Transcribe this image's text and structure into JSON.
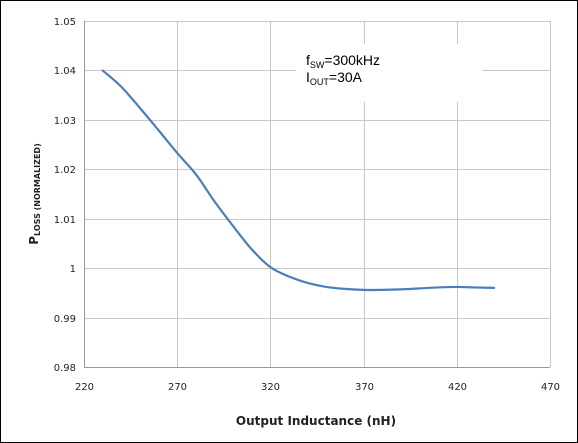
{
  "chart_data": {
    "type": "line",
    "xlabel": "Output Inductance (nH)",
    "ylabel": {
      "main": "P",
      "subscript": "LOSS (NORMALIZED)"
    },
    "xlim": [
      220,
      470
    ],
    "ylim": [
      0.98,
      1.05
    ],
    "x_ticks": [
      "220",
      "270",
      "320",
      "370",
      "420",
      "470"
    ],
    "y_ticks": [
      "0.98",
      "0.99",
      "1",
      "1.01",
      "1.02",
      "1.03",
      "1.04",
      "1.05"
    ],
    "grid": true,
    "series": [
      {
        "color": "#4a7ebb",
        "x": [
          230,
          240,
          250,
          260,
          270,
          280,
          290,
          300,
          310,
          320,
          330,
          340,
          350,
          360,
          370,
          380,
          390,
          400,
          410,
          420,
          430,
          440
        ],
        "y": [
          1.04,
          1.0367,
          1.0324,
          1.0279,
          1.0233,
          1.019,
          1.0135,
          1.0085,
          1.0038,
          1.0002,
          0.9983,
          0.997,
          0.9962,
          0.9958,
          0.9956,
          0.9956,
          0.9957,
          0.9959,
          0.9961,
          0.9962,
          0.9961,
          0.996
        ]
      }
    ],
    "annotation": {
      "line1": {
        "main": "f",
        "sub": "SW",
        "rest": "=300kHz"
      },
      "line2": {
        "main": "I",
        "sub": "OUT",
        "rest": "=30A"
      }
    }
  }
}
